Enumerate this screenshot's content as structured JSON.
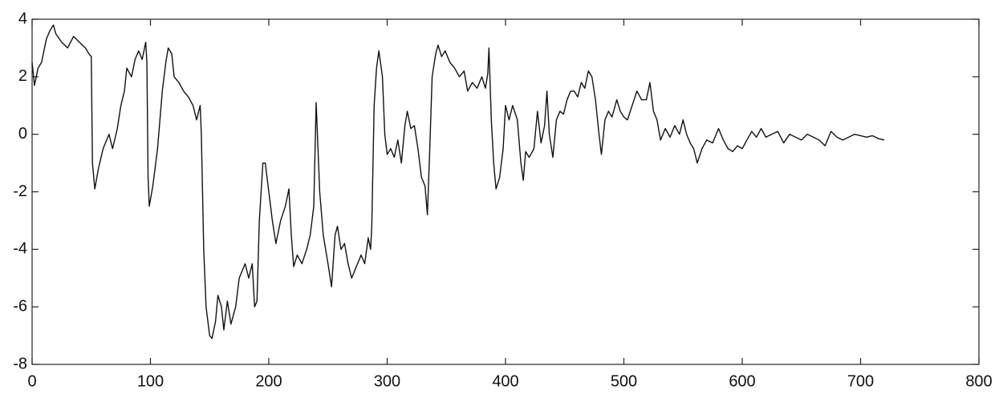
{
  "chart_data": {
    "type": "line",
    "color": "#111111",
    "xlim": [
      0,
      800
    ],
    "xticks": [
      0,
      100,
      200,
      300,
      400,
      500,
      600,
      700,
      800
    ],
    "ylim": [
      -8,
      4
    ],
    "yticks": [
      -8,
      -6,
      -4,
      -2,
      0,
      2,
      4
    ],
    "x": [
      0,
      2,
      5,
      8,
      12,
      15,
      18,
      20,
      25,
      30,
      35,
      40,
      45,
      48,
      50,
      51,
      53,
      56,
      60,
      65,
      68,
      72,
      75,
      78,
      80,
      84,
      87,
      90,
      93,
      96,
      97,
      98,
      99,
      102,
      106,
      110,
      113,
      115,
      118,
      120,
      124,
      128,
      132,
      136,
      139,
      142,
      143,
      145,
      147,
      150,
      152,
      155,
      157,
      160,
      162,
      165,
      168,
      172,
      175,
      180,
      183,
      186,
      188,
      190,
      192,
      195,
      197,
      200,
      203,
      206,
      210,
      214,
      217,
      219,
      221,
      224,
      228,
      232,
      235,
      238,
      240,
      243,
      246,
      250,
      253,
      256,
      258,
      261,
      264,
      267,
      270,
      274,
      278,
      281,
      284,
      286,
      287,
      289,
      291,
      293,
      296,
      298,
      300,
      303,
      306,
      309,
      312,
      315,
      317,
      320,
      323,
      326,
      329,
      332,
      334,
      336,
      338,
      341,
      343,
      346,
      349,
      353,
      357,
      361,
      365,
      368,
      372,
      376,
      380,
      383,
      385,
      386,
      388,
      390,
      392,
      395,
      398,
      400,
      403,
      406,
      410,
      413,
      415,
      417,
      420,
      424,
      427,
      430,
      433,
      435,
      437,
      440,
      443,
      446,
      449,
      452,
      455,
      458,
      461,
      464,
      467,
      470,
      473,
      476,
      479,
      481,
      484,
      487,
      490,
      494,
      497,
      500,
      503,
      507,
      511,
      515,
      519,
      522,
      525,
      528,
      531,
      535,
      539,
      543,
      547,
      550,
      553,
      556,
      559,
      562,
      566,
      570,
      575,
      580,
      584,
      588,
      592,
      596,
      600,
      604,
      608,
      612,
      616,
      620,
      625,
      630,
      635,
      640,
      645,
      650,
      655,
      660,
      665,
      670,
      675,
      680,
      685,
      690,
      695,
      700,
      705,
      710,
      715,
      720
    ],
    "values": [
      2.5,
      1.7,
      2.3,
      2.5,
      3.3,
      3.6,
      3.8,
      3.5,
      3.2,
      3.0,
      3.4,
      3.2,
      3.0,
      2.8,
      2.7,
      -1.0,
      -1.9,
      -1.2,
      -0.5,
      0,
      -0.5,
      0.2,
      1.0,
      1.5,
      2.3,
      2.0,
      2.6,
      2.9,
      2.6,
      3.2,
      2.5,
      -1.5,
      -2.5,
      -1.8,
      -0.5,
      1.5,
      2.5,
      3.0,
      2.8,
      2.0,
      1.8,
      1.5,
      1.3,
      1.0,
      0.5,
      1.0,
      0.0,
      -4.0,
      -6.0,
      -7.0,
      -7.1,
      -6.5,
      -5.6,
      -6.0,
      -6.8,
      -5.8,
      -6.6,
      -6.0,
      -5.0,
      -4.5,
      -5.0,
      -4.5,
      -6.0,
      -5.8,
      -3.0,
      -1.0,
      -1.0,
      -2.0,
      -3.0,
      -3.8,
      -3.0,
      -2.5,
      -1.9,
      -3.5,
      -4.6,
      -4.2,
      -4.5,
      -4.0,
      -3.5,
      -2.5,
      1.1,
      -2.0,
      -3.5,
      -4.5,
      -5.3,
      -3.5,
      -3.2,
      -4.0,
      -3.8,
      -4.5,
      -5.0,
      -4.6,
      -4.2,
      -4.5,
      -3.6,
      -4.0,
      -3.2,
      1.0,
      2.3,
      2.9,
      2.0,
      0,
      -0.7,
      -0.5,
      -0.8,
      -0.2,
      -1.0,
      0.3,
      0.8,
      0.2,
      0.3,
      -0.5,
      -1.5,
      -1.8,
      -2.8,
      -0.5,
      2.0,
      2.8,
      3.1,
      2.7,
      2.9,
      2.5,
      2.3,
      2.0,
      2.2,
      1.5,
      1.8,
      1.6,
      2.0,
      1.6,
      2.1,
      3.0,
      0.5,
      -1.0,
      -1.9,
      -1.5,
      -0.5,
      1.0,
      0.5,
      1.0,
      0.5,
      -1.0,
      -1.6,
      -0.6,
      -0.8,
      -0.5,
      0.8,
      -0.3,
      0.3,
      1.5,
      0.0,
      -0.8,
      0.5,
      0.8,
      0.7,
      1.2,
      1.5,
      1.5,
      1.3,
      1.8,
      1.6,
      2.2,
      2.0,
      1.2,
      0.0,
      -0.7,
      0.5,
      0.8,
      0.6,
      1.2,
      0.8,
      0.6,
      0.5,
      1.0,
      1.5,
      1.2,
      1.2,
      1.8,
      0.8,
      0.5,
      -0.2,
      0.2,
      -0.1,
      0.3,
      0.0,
      0.5,
      0,
      -0.3,
      -0.5,
      -1.0,
      -0.5,
      -0.2,
      -0.3,
      0.2,
      -0.2,
      -0.5,
      -0.6,
      -0.4,
      -0.5,
      -0.2,
      0.1,
      -0.1,
      0.2,
      -0.1,
      0.0,
      0.1,
      -0.3,
      0.0,
      -0.1,
      -0.2,
      0.0,
      -0.1,
      -0.2,
      -0.4,
      0.1,
      -0.1,
      -0.2,
      -0.1,
      0.0,
      -0.05,
      -0.1,
      -0.05,
      -0.15,
      -0.2
    ]
  }
}
